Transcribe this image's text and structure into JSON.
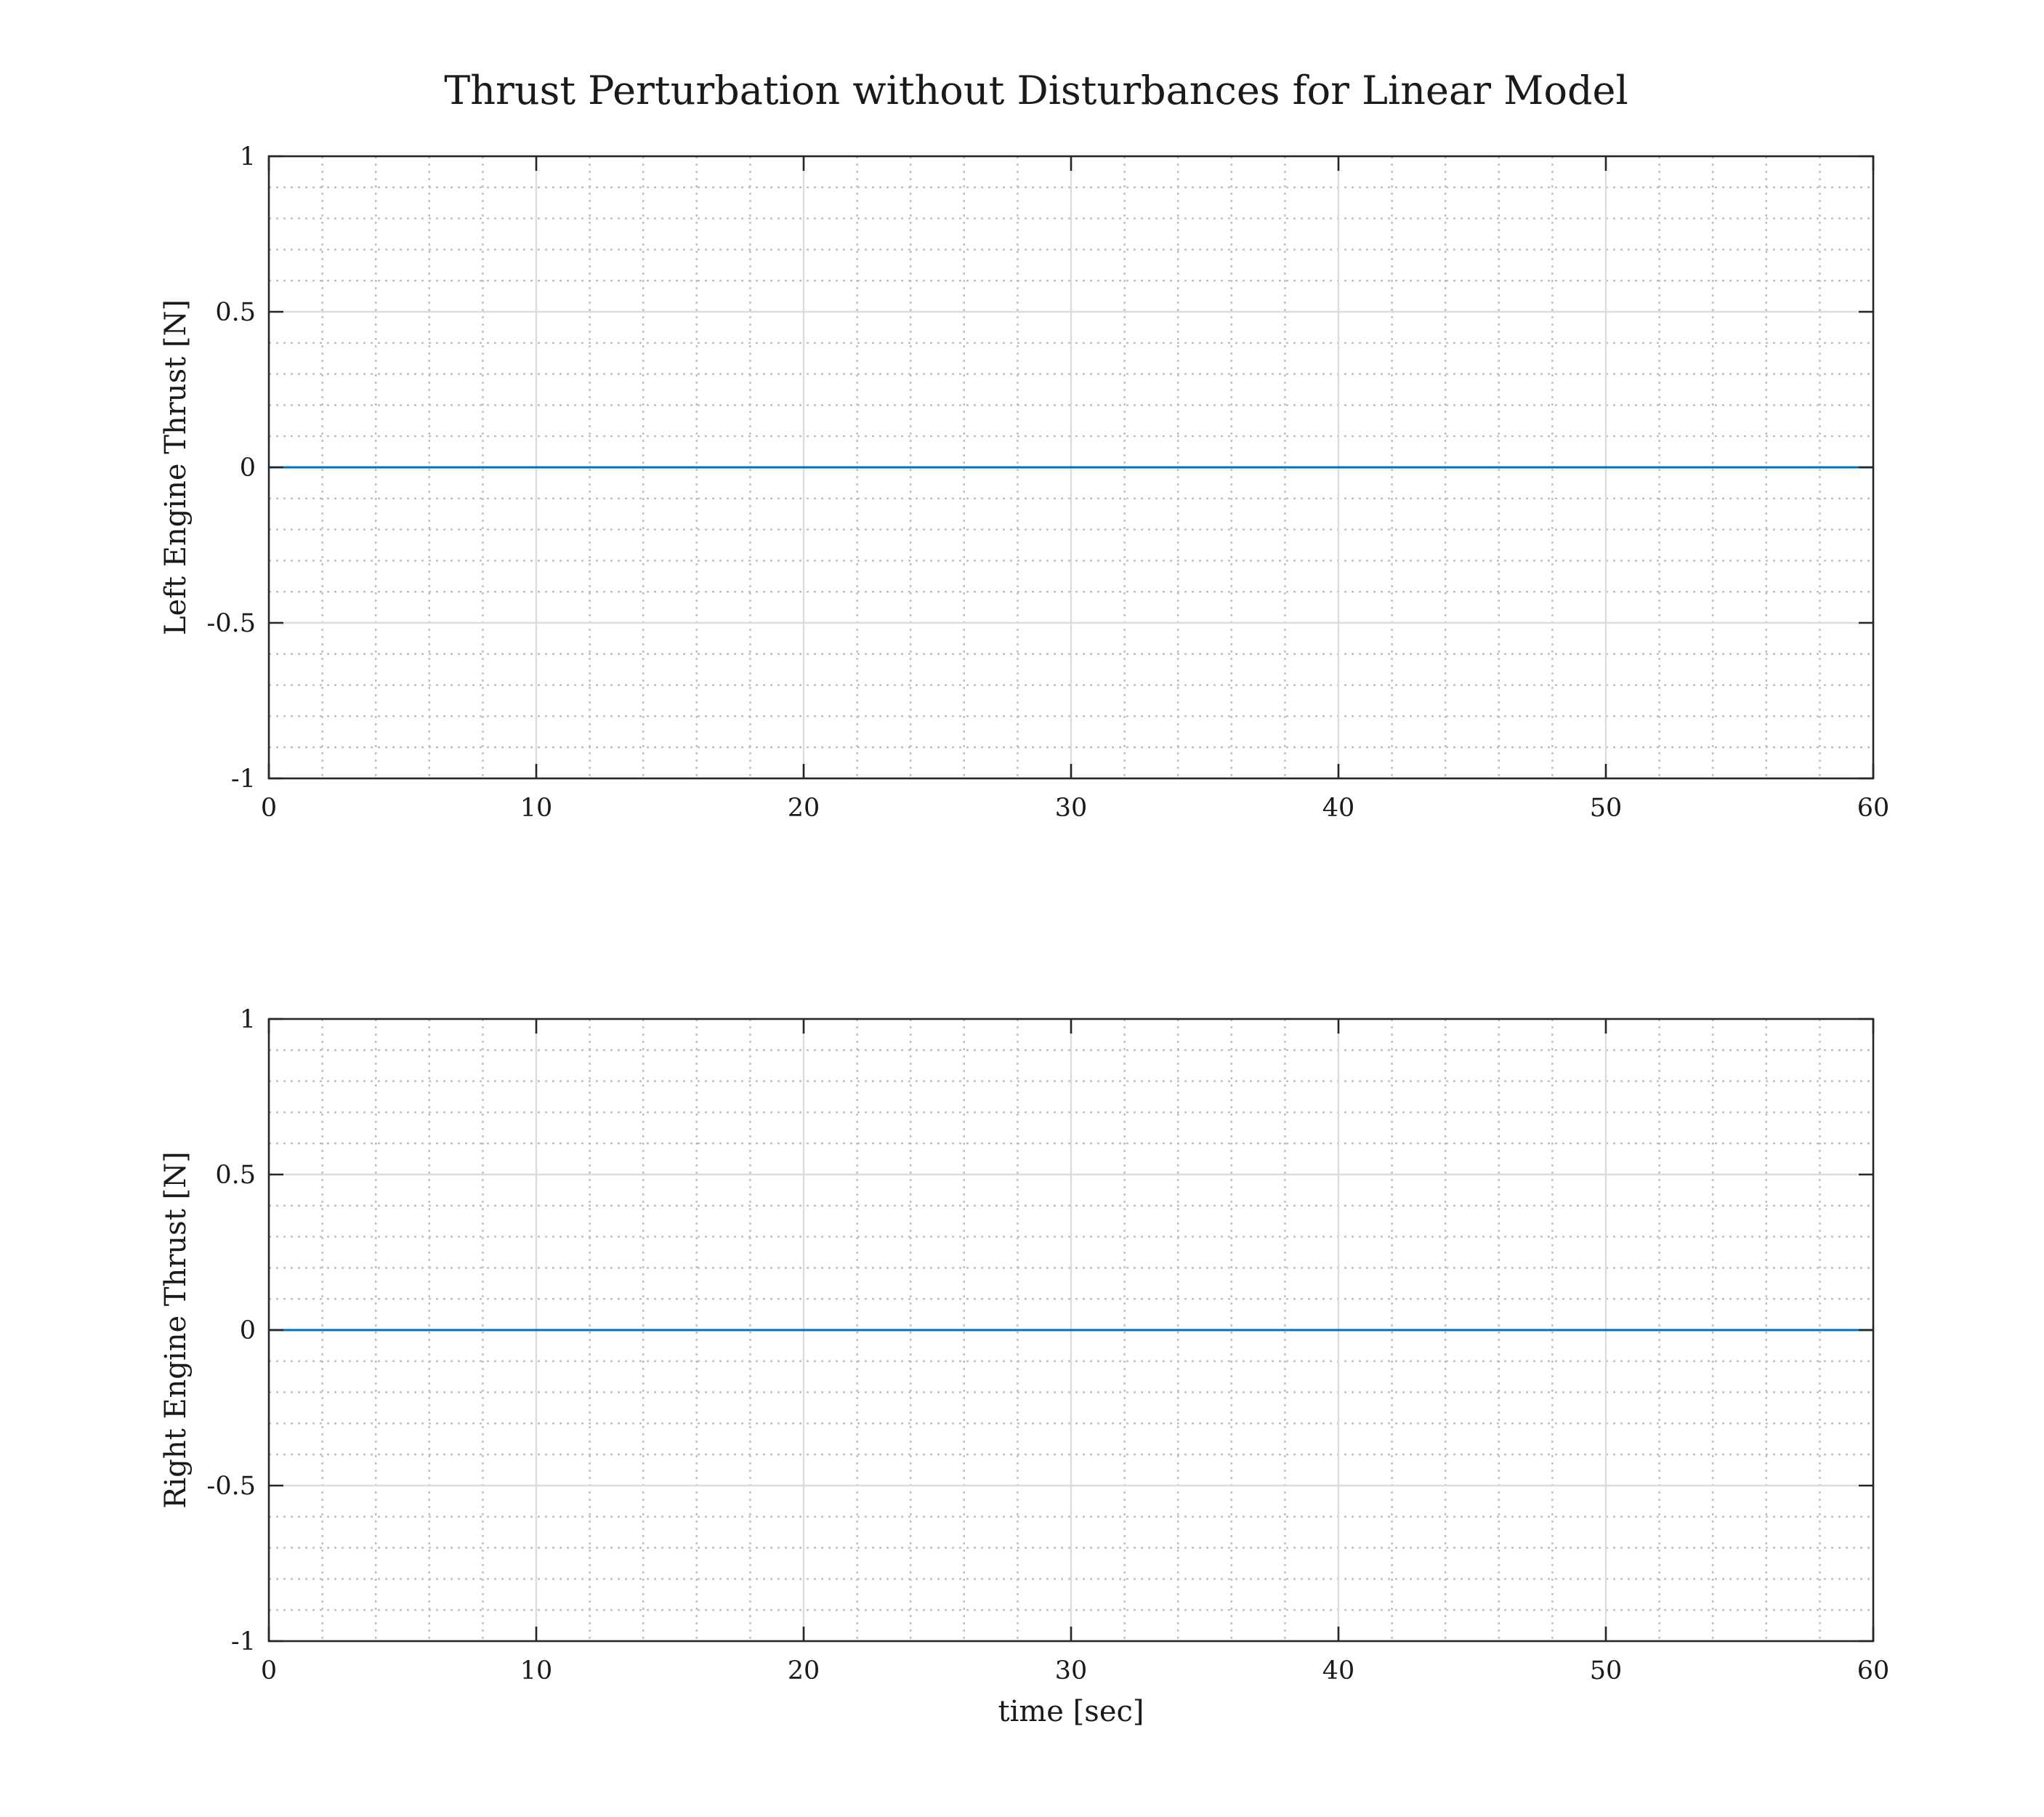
{
  "figure": {
    "title": "Thrust Perturbation without Disturbances for Linear Model"
  },
  "chart_data": [
    {
      "type": "line",
      "title": "",
      "xlabel": "",
      "ylabel": "Left Engine Thrust [N]",
      "xlim": [
        0,
        60
      ],
      "ylim": [
        -1,
        1
      ],
      "xticks": [
        0,
        10,
        20,
        30,
        40,
        50,
        60
      ],
      "yticks": [
        -1,
        -0.5,
        0,
        0.5,
        1
      ],
      "xticklabels": [
        "0",
        "10",
        "20",
        "30",
        "40",
        "50",
        "60"
      ],
      "yticklabels": [
        "-1",
        "-0.5",
        "0",
        "0.5",
        "1"
      ],
      "grid": true,
      "minor_grid": true,
      "series": [
        {
          "x": [
            0,
            60
          ],
          "y": [
            0,
            0
          ],
          "color": "#0072bd"
        }
      ]
    },
    {
      "type": "line",
      "title": "",
      "xlabel": "time [sec]",
      "ylabel": "Right Engine Thrust [N]",
      "xlim": [
        0,
        60
      ],
      "ylim": [
        -1,
        1
      ],
      "xticks": [
        0,
        10,
        20,
        30,
        40,
        50,
        60
      ],
      "yticks": [
        -1,
        -0.5,
        0,
        0.5,
        1
      ],
      "xticklabels": [
        "0",
        "10",
        "20",
        "30",
        "40",
        "50",
        "60"
      ],
      "yticklabels": [
        "-1",
        "-0.5",
        "0",
        "0.5",
        "1"
      ],
      "grid": true,
      "minor_grid": true,
      "series": [
        {
          "x": [
            0,
            60
          ],
          "y": [
            0,
            0
          ],
          "color": "#0072bd"
        }
      ]
    }
  ]
}
